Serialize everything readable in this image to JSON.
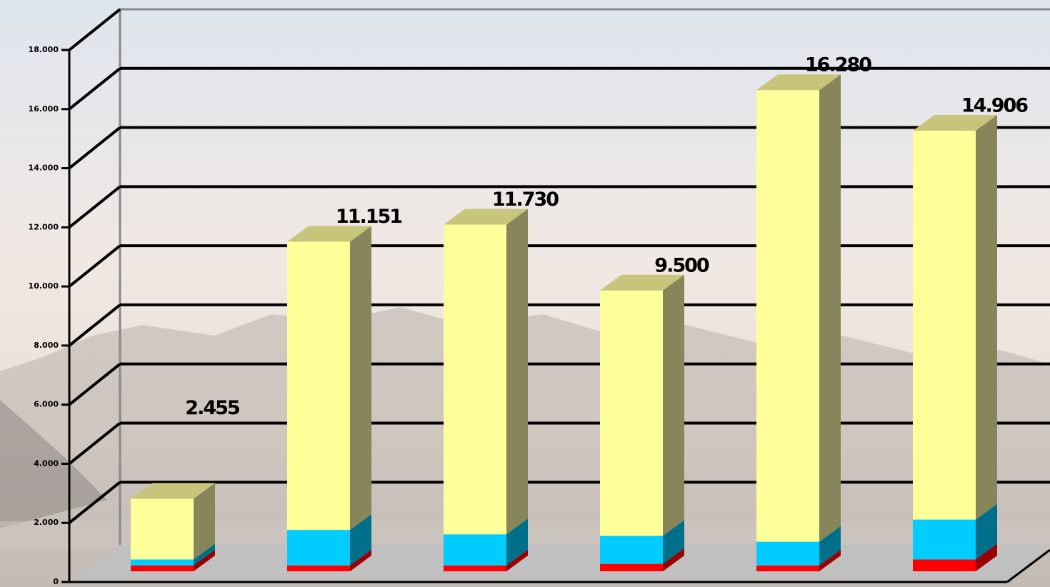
{
  "chart_data": {
    "type": "bar3d_stacked",
    "series": [
      {
        "color": "#ff0000",
        "side_color": "#9a0000",
        "top_color": "#c00000",
        "values": [
          200,
          200,
          200,
          250,
          200,
          400
        ]
      },
      {
        "color": "#00ccff",
        "side_color": "#006f8a",
        "top_color": "#0099bb",
        "values": [
          200,
          1200,
          1050,
          950,
          800,
          1350
        ]
      },
      {
        "color": "#ffff99",
        "side_color": "#86865a",
        "top_color": "#c8c47c",
        "values": [
          2055,
          9751,
          10480,
          8300,
          15280,
          13156
        ]
      }
    ],
    "totals": [
      2455,
      11151,
      11730,
      9500,
      16280,
      14906
    ],
    "value_labels": [
      "2.455",
      "11.151",
      "11.730",
      "9.500",
      "16.280",
      "14.906"
    ],
    "ylim": [
      0,
      18000
    ],
    "yticks": [
      0,
      {
        "value": 2000,
        "label": "2.000"
      },
      {
        "value": 4000,
        "label": "4.000"
      },
      {
        "value": 6000,
        "label": "6.000"
      },
      {
        "value": 8000,
        "label": "8.000"
      },
      {
        "value": 10000,
        "label": "10.000"
      },
      {
        "value": 12000,
        "label": "12.000"
      },
      {
        "value": 14000,
        "label": "14.000"
      },
      {
        "value": 16000,
        "label": "16.000"
      },
      {
        "value": 18000,
        "label": "18.000"
      }
    ],
    "grid": true
  }
}
